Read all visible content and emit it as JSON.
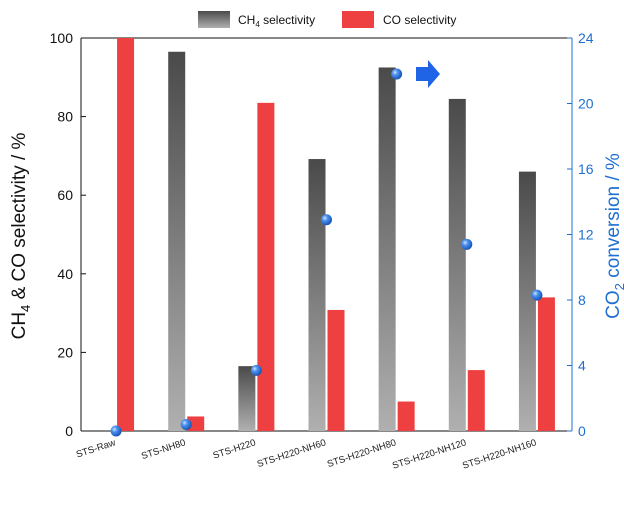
{
  "chart_data": {
    "type": "bar",
    "categories": [
      "STS-Raw",
      "STS-NH80",
      "STS-H220",
      "STS-H220-NH60",
      "STS-H220-NH80",
      "STS-H220-NH120",
      "STS-H220-NH160"
    ],
    "series": [
      {
        "name": "CH₄ selectivity",
        "values": [
          0,
          96.5,
          16.5,
          69.2,
          92.5,
          84.5,
          66.0
        ],
        "color": "#555555",
        "axis": "left"
      },
      {
        "name": "CO selectivity",
        "values": [
          100,
          3.7,
          83.5,
          30.8,
          7.5,
          15.5,
          34.0
        ],
        "color": "#ee4040",
        "axis": "left"
      },
      {
        "name": "CO₂ conversion",
        "values": [
          0,
          0.4,
          3.7,
          12.9,
          21.8,
          11.4,
          8.3
        ],
        "color": "#1f6fd1",
        "axis": "right",
        "type": "scatter"
      }
    ],
    "ylabel_left": {
      "pre": "CH",
      "sub": "4",
      "post": " & CO selectivity / %"
    },
    "ylabel_right": {
      "pre": "CO",
      "sub": "2",
      "post": " conversion / %"
    },
    "ylim_left": [
      0,
      100
    ],
    "ylim_right": [
      0,
      24
    ],
    "yticks_left": [
      "0",
      "20",
      "40",
      "60",
      "80",
      "100"
    ],
    "yticks_right": [
      "0",
      "4",
      "8",
      "12",
      "16",
      "20",
      "24"
    ],
    "legend": {
      "placement": "top-center",
      "items": [
        {
          "pre": "CH",
          "sub": "4",
          "post": " selectivity"
        },
        {
          "pre": "CO selectivity",
          "sub": "",
          "post": ""
        }
      ]
    },
    "annotation": "arrow-right-icon",
    "grid": false,
    "colors": {
      "left_axis": "#111111",
      "right_axis": "#1f6fd1",
      "ch4": "#555555",
      "co": "#ee4040",
      "marker": "#1f6fd1",
      "arrow": "#1f63e6"
    }
  }
}
